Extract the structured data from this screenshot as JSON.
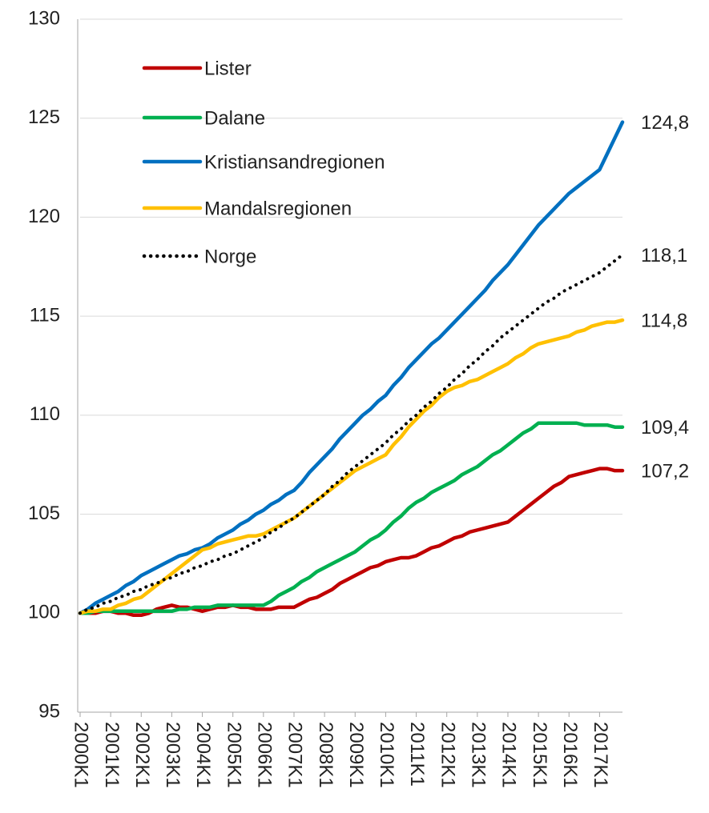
{
  "chart_data": {
    "type": "line",
    "categories": [
      "2000K1",
      null,
      null,
      null,
      "2001K1",
      null,
      null,
      null,
      "2002K1",
      null,
      null,
      null,
      "2003K1",
      null,
      null,
      null,
      "2004K1",
      null,
      null,
      null,
      "2005K1",
      null,
      null,
      null,
      "2006K1",
      null,
      null,
      null,
      "2007K1",
      null,
      null,
      null,
      "2008K1",
      null,
      null,
      null,
      "2009K1",
      null,
      null,
      null,
      "2010K1",
      null,
      null,
      null,
      "2011K1",
      null,
      null,
      null,
      "2012K1",
      null,
      null,
      null,
      "2013K1",
      null,
      null,
      null,
      "2014K1",
      null,
      null,
      null,
      "2015K1",
      null,
      null,
      null,
      "2016K1",
      null,
      null,
      null,
      "2017K1",
      null,
      null,
      null
    ],
    "ylim": [
      95,
      130
    ],
    "yticks": [
      95,
      100,
      105,
      110,
      115,
      120,
      125,
      130
    ],
    "grid": true,
    "legend": "upper left",
    "series": [
      {
        "name": "Lister",
        "color": "#c00000",
        "style": "solid",
        "values": [
          100,
          100,
          100,
          100.1,
          100.1,
          100,
          100,
          99.9,
          99.9,
          100,
          100.2,
          100.3,
          100.4,
          100.3,
          100.3,
          100.2,
          100.1,
          100.2,
          100.3,
          100.3,
          100.4,
          100.3,
          100.3,
          100.2,
          100.2,
          100.2,
          100.3,
          100.3,
          100.3,
          100.5,
          100.7,
          100.8,
          101.0,
          101.2,
          101.5,
          101.7,
          101.9,
          102.1,
          102.3,
          102.4,
          102.6,
          102.7,
          102.8,
          102.8,
          102.9,
          103.1,
          103.3,
          103.4,
          103.6,
          103.8,
          103.9,
          104.1,
          104.2,
          104.3,
          104.4,
          104.5,
          104.6,
          104.9,
          105.2,
          105.5,
          105.8,
          106.1,
          106.4,
          106.6,
          106.9,
          107.0,
          107.1,
          107.2,
          107.3,
          107.3,
          107.2,
          107.2
        ],
        "value_labels": [
          null,
          null,
          null,
          null,
          null,
          null,
          null,
          null,
          null,
          null,
          null,
          null,
          null,
          null,
          null,
          null,
          null,
          null,
          null,
          null,
          null,
          null,
          null,
          null,
          null,
          null,
          null,
          null,
          null,
          null,
          null,
          null,
          null,
          null,
          null,
          null,
          null,
          null,
          null,
          null,
          null,
          null,
          null,
          null,
          null,
          null,
          null,
          null,
          null,
          null,
          null,
          null,
          null,
          null,
          null,
          null,
          null,
          null,
          null,
          null,
          null,
          null,
          null,
          null,
          null,
          null,
          null,
          null,
          null,
          null,
          null,
          "107,2"
        ]
      },
      {
        "name": "Dalane",
        "color": "#00b050",
        "style": "solid",
        "values": [
          100,
          100,
          100.1,
          100.1,
          100.1,
          100.1,
          100.1,
          100.1,
          100.1,
          100.1,
          100.1,
          100.1,
          100.1,
          100.2,
          100.2,
          100.3,
          100.3,
          100.3,
          100.4,
          100.4,
          100.4,
          100.4,
          100.4,
          100.4,
          100.4,
          100.6,
          100.9,
          101.1,
          101.3,
          101.6,
          101.8,
          102.1,
          102.3,
          102.5,
          102.7,
          102.9,
          103.1,
          103.4,
          103.7,
          103.9,
          104.2,
          104.6,
          104.9,
          105.3,
          105.6,
          105.8,
          106.1,
          106.3,
          106.5,
          106.7,
          107.0,
          107.2,
          107.4,
          107.7,
          108.0,
          108.2,
          108.5,
          108.8,
          109.1,
          109.3,
          109.6,
          109.6,
          109.6,
          109.6,
          109.6,
          109.6,
          109.5,
          109.5,
          109.5,
          109.5,
          109.4,
          109.4
        ],
        "value_labels": [
          null,
          null,
          null,
          null,
          null,
          null,
          null,
          null,
          null,
          null,
          null,
          null,
          null,
          null,
          null,
          null,
          null,
          null,
          null,
          null,
          null,
          null,
          null,
          null,
          null,
          null,
          null,
          null,
          null,
          null,
          null,
          null,
          null,
          null,
          null,
          null,
          null,
          null,
          null,
          null,
          null,
          null,
          null,
          null,
          null,
          null,
          null,
          null,
          null,
          null,
          null,
          null,
          null,
          null,
          null,
          null,
          null,
          null,
          null,
          null,
          null,
          null,
          null,
          null,
          null,
          null,
          null,
          null,
          null,
          null,
          null,
          "109,4"
        ]
      },
      {
        "name": "Kristiansandregionen",
        "color": "#0070c0",
        "style": "solid",
        "values": [
          100,
          100.2,
          100.5,
          100.7,
          100.9,
          101.1,
          101.4,
          101.6,
          101.9,
          102.1,
          102.3,
          102.5,
          102.7,
          102.9,
          103.0,
          103.2,
          103.3,
          103.5,
          103.8,
          104.0,
          104.2,
          104.5,
          104.7,
          105.0,
          105.2,
          105.5,
          105.7,
          106.0,
          106.2,
          106.6,
          107.1,
          107.5,
          107.9,
          108.3,
          108.8,
          109.2,
          109.6,
          110.0,
          110.3,
          110.7,
          111.0,
          111.5,
          111.9,
          112.4,
          112.8,
          113.2,
          113.6,
          113.9,
          114.3,
          114.7,
          115.1,
          115.5,
          115.9,
          116.3,
          116.8,
          117.2,
          117.6,
          118.1,
          118.6,
          119.1,
          119.6,
          120.0,
          120.4,
          120.8,
          121.2,
          121.5,
          121.8,
          122.1,
          122.4,
          123.2,
          124.0,
          124.8
        ],
        "value_labels": [
          null,
          null,
          null,
          null,
          null,
          null,
          null,
          null,
          null,
          null,
          null,
          null,
          null,
          null,
          null,
          null,
          null,
          null,
          null,
          null,
          null,
          null,
          null,
          null,
          null,
          null,
          null,
          null,
          null,
          null,
          null,
          null,
          null,
          null,
          null,
          null,
          null,
          null,
          null,
          null,
          null,
          null,
          null,
          null,
          null,
          null,
          null,
          null,
          null,
          null,
          null,
          null,
          null,
          null,
          null,
          null,
          null,
          null,
          null,
          null,
          null,
          null,
          null,
          null,
          null,
          null,
          null,
          null,
          null,
          null,
          null,
          "124,8"
        ]
      },
      {
        "name": "Mandalsregionen",
        "color": "#ffc000",
        "style": "solid",
        "values": [
          100,
          100.1,
          100.1,
          100.2,
          100.2,
          100.4,
          100.5,
          100.7,
          100.8,
          101.1,
          101.4,
          101.7,
          102.0,
          102.3,
          102.6,
          102.9,
          103.2,
          103.3,
          103.5,
          103.6,
          103.7,
          103.8,
          103.9,
          103.9,
          104.0,
          104.2,
          104.4,
          104.6,
          104.8,
          105.1,
          105.4,
          105.7,
          106.0,
          106.3,
          106.6,
          106.9,
          107.2,
          107.4,
          107.6,
          107.8,
          108.0,
          108.5,
          108.9,
          109.4,
          109.8,
          110.2,
          110.5,
          110.9,
          111.2,
          111.4,
          111.5,
          111.7,
          111.8,
          112.0,
          112.2,
          112.4,
          112.6,
          112.9,
          113.1,
          113.4,
          113.6,
          113.7,
          113.8,
          113.9,
          114.0,
          114.2,
          114.3,
          114.5,
          114.6,
          114.7,
          114.7,
          114.8
        ],
        "value_labels": [
          null,
          null,
          null,
          null,
          null,
          null,
          null,
          null,
          null,
          null,
          null,
          null,
          null,
          null,
          null,
          null,
          null,
          null,
          null,
          null,
          null,
          null,
          null,
          null,
          null,
          null,
          null,
          null,
          null,
          null,
          null,
          null,
          null,
          null,
          null,
          null,
          null,
          null,
          null,
          null,
          null,
          null,
          null,
          null,
          null,
          null,
          null,
          null,
          null,
          null,
          null,
          null,
          null,
          null,
          null,
          null,
          null,
          null,
          null,
          null,
          null,
          null,
          null,
          null,
          null,
          null,
          null,
          null,
          null,
          null,
          null,
          "114,8"
        ]
      },
      {
        "name": "Norge",
        "color": "#000000",
        "style": "dotted",
        "values": [
          100,
          100.2,
          100.3,
          100.5,
          100.6,
          100.8,
          100.9,
          101.1,
          101.2,
          101.4,
          101.5,
          101.7,
          101.8,
          102.0,
          102.1,
          102.3,
          102.4,
          102.6,
          102.7,
          102.9,
          103.0,
          103.2,
          103.4,
          103.6,
          103.8,
          104.1,
          104.3,
          104.6,
          104.8,
          105.1,
          105.4,
          105.7,
          106.0,
          106.4,
          106.7,
          107.1,
          107.4,
          107.7,
          108.0,
          108.3,
          108.6,
          109.0,
          109.3,
          109.7,
          110.0,
          110.4,
          110.7,
          111.1,
          111.4,
          111.8,
          112.1,
          112.5,
          112.8,
          113.2,
          113.5,
          113.9,
          114.2,
          114.5,
          114.8,
          115.1,
          115.4,
          115.7,
          115.9,
          116.2,
          116.4,
          116.6,
          116.8,
          117.0,
          117.2,
          117.5,
          117.8,
          118.1
        ],
        "value_labels": [
          null,
          null,
          null,
          null,
          null,
          null,
          null,
          null,
          null,
          null,
          null,
          null,
          null,
          null,
          null,
          null,
          null,
          null,
          null,
          null,
          null,
          null,
          null,
          null,
          null,
          null,
          null,
          null,
          null,
          null,
          null,
          null,
          null,
          null,
          null,
          null,
          null,
          null,
          null,
          null,
          null,
          null,
          null,
          null,
          null,
          null,
          null,
          null,
          null,
          null,
          null,
          null,
          null,
          null,
          null,
          null,
          null,
          null,
          null,
          null,
          null,
          null,
          null,
          null,
          null,
          null,
          null,
          null,
          null,
          null,
          null,
          "118,1"
        ]
      }
    ]
  }
}
